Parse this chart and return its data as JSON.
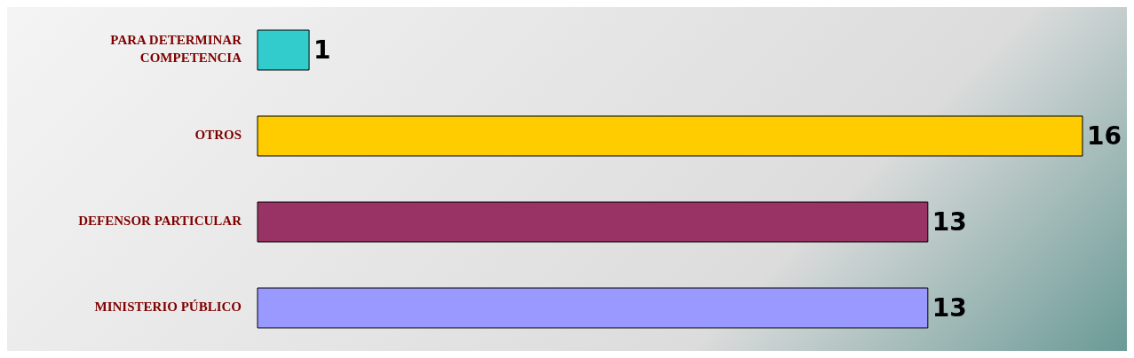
{
  "chart_data": {
    "type": "bar",
    "orientation": "horizontal",
    "categories": [
      "PARA DETERMINAR COMPETENCIA",
      "OTROS",
      "DEFENSOR PARTICULAR",
      "MINISTERIO PÚBLICO"
    ],
    "values": [
      1,
      16,
      13,
      13
    ],
    "colors": [
      "#33cccc",
      "#ffcc00",
      "#993366",
      "#9999ff"
    ],
    "data_labels": true
  }
}
